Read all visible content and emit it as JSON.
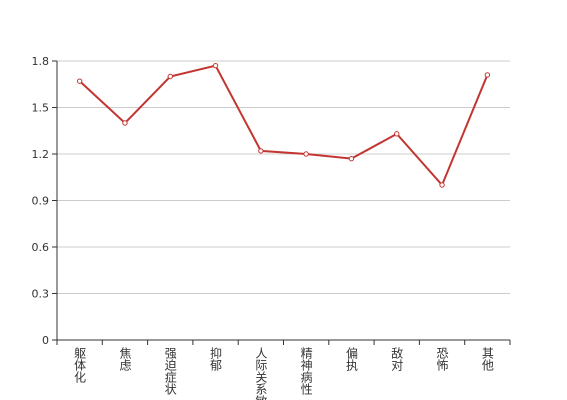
{
  "chart_data": {
    "type": "line",
    "categories": [
      "躯体化",
      "焦虑",
      "强迫症状",
      "抑郁",
      "人际关系敏感",
      "精神病性",
      "偏执",
      "敌对",
      "恐怖",
      "其他"
    ],
    "values": [
      1.67,
      1.4,
      1.7,
      1.77,
      1.22,
      1.2,
      1.17,
      1.33,
      1.0,
      1.71
    ],
    "color": "#c23531",
    "ylim": [
      0,
      1.8
    ],
    "yticks": [
      0,
      0.3,
      0.6,
      0.9,
      1.2,
      1.5,
      1.8
    ],
    "grid": true
  }
}
